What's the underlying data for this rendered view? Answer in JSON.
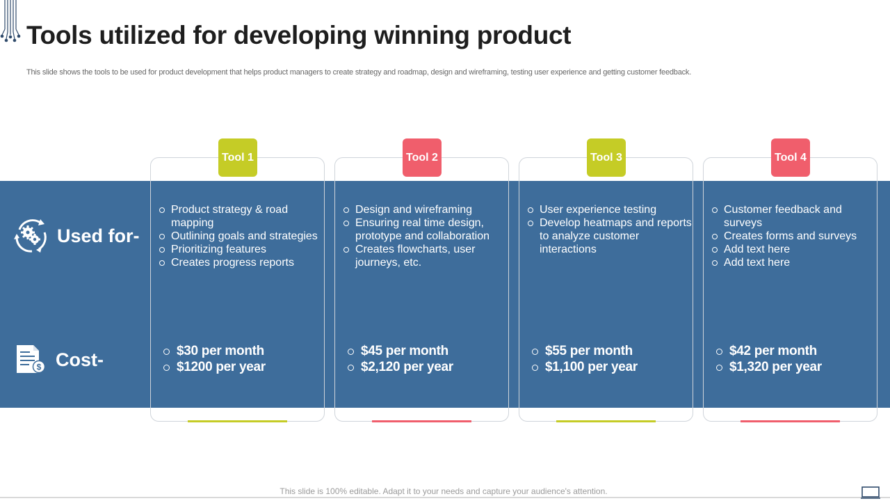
{
  "title": "Tools utilized for developing winning product",
  "subtitle": "This slide shows the tools to be used for product development that helps product managers to create strategy and roadmap, design and wireframing, testing user experience and getting customer feedback.",
  "row_labels": {
    "used": "Used for-",
    "cost": "Cost-"
  },
  "colors": {
    "band": "#3e6d9b",
    "lime": "#c5cc26",
    "coral": "#f05e6c"
  },
  "tools": [
    {
      "name": "Tool 1",
      "uses": [
        "Product strategy  & road mapping",
        "Outlining goals and strategies",
        "Prioritizing features",
        "Creates progress reports"
      ],
      "costs": [
        "$30 per month",
        "$1200 per year"
      ]
    },
    {
      "name": "Tool 2",
      "uses": [
        "Design and wireframing",
        "Ensuring real time design, prototype and collaboration",
        "Creates flowcharts,  user journeys,  etc."
      ],
      "costs": [
        "$45 per month",
        "$2,120 per year"
      ]
    },
    {
      "name": "Tool 3",
      "uses": [
        "User experience testing",
        "Develop heatmaps and reports to analyze  customer interactions"
      ],
      "costs": [
        "$55 per month",
        "$1,100 per year"
      ]
    },
    {
      "name": "Tool 4",
      "uses": [
        "Customer feedback and surveys",
        "Creates forms and surveys",
        "Add text here",
        "Add text here"
      ],
      "costs": [
        "$42 per month",
        "$1,320 per year"
      ]
    }
  ],
  "footer": "This slide is 100%  editable.  Adapt it to your needs and capture your audience's attention."
}
